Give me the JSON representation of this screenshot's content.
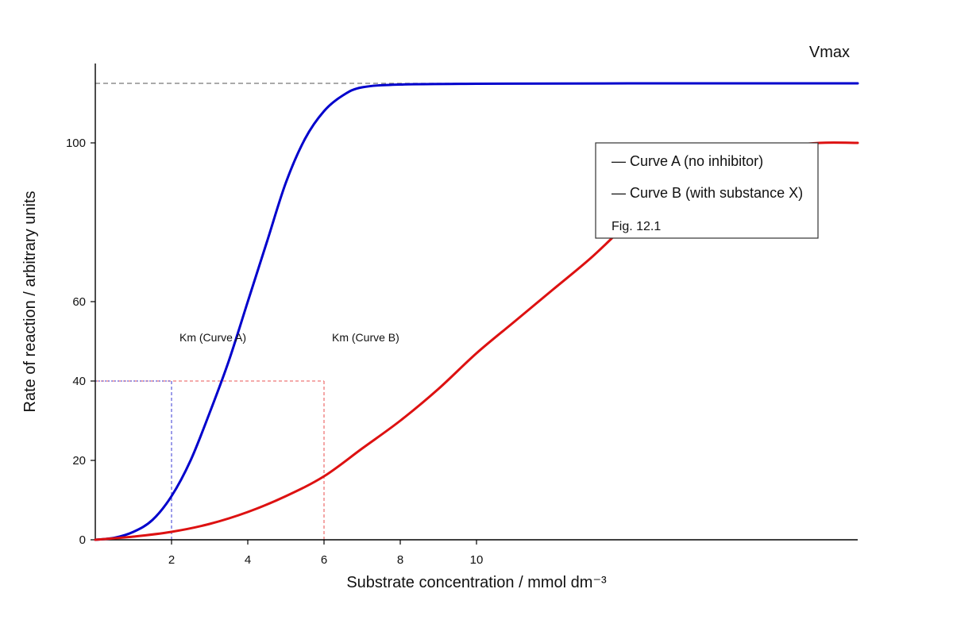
{
  "chart_data": {
    "type": "line",
    "title": "",
    "xlabel": "Substrate concentration / mmol dm⁻³",
    "ylabel": "Rate of reaction / arbitrary units",
    "xlim": [
      0,
      20
    ],
    "ylim": [
      0,
      120
    ],
    "x_ticks": [
      "2",
      "4",
      "6",
      "8",
      "10"
    ],
    "y_ticks": [
      "0",
      "20",
      "40",
      "60",
      "100"
    ],
    "grid": false,
    "legend_position": "top-right",
    "legend_note": "Fig. 12.1",
    "colors": {
      "curve_a": "#0000cc",
      "curve_b": "#dd1111",
      "vmax_line": "#777777",
      "km_a_line": "#6666dd",
      "km_b_line": "#ee7777"
    },
    "series": [
      {
        "name": "Curve A (no inhibitor)",
        "legend_label": "— Curve A (no inhibitor)",
        "color": "#0000cc",
        "points": [
          [
            0,
            0
          ],
          [
            0.5,
            0.5
          ],
          [
            1,
            2
          ],
          [
            1.5,
            5
          ],
          [
            2,
            11
          ],
          [
            2.5,
            20
          ],
          [
            3,
            32
          ],
          [
            3.5,
            45
          ],
          [
            4,
            60
          ],
          [
            4.5,
            75
          ],
          [
            5,
            90
          ],
          [
            5.5,
            101
          ],
          [
            6,
            108
          ],
          [
            6.5,
            112
          ],
          [
            7,
            114
          ],
          [
            8,
            114.7
          ],
          [
            10,
            114.9
          ],
          [
            14,
            115
          ],
          [
            20,
            115
          ]
        ]
      },
      {
        "name": "Curve B (with substance X)",
        "legend_label": "— Curve B (with substance X)",
        "color": "#dd1111",
        "points": [
          [
            0,
            0
          ],
          [
            1,
            0.8
          ],
          [
            2,
            2
          ],
          [
            3,
            4
          ],
          [
            4,
            7
          ],
          [
            5,
            11
          ],
          [
            6,
            16
          ],
          [
            7,
            23
          ],
          [
            8,
            30
          ],
          [
            9,
            38
          ],
          [
            10,
            47
          ],
          [
            11,
            55
          ],
          [
            12,
            63
          ],
          [
            13,
            71
          ],
          [
            14,
            80
          ],
          [
            15,
            88
          ],
          [
            16,
            94
          ],
          [
            17,
            97
          ],
          [
            18,
            99
          ],
          [
            19,
            100
          ],
          [
            20,
            100
          ]
        ]
      }
    ],
    "annotations": {
      "vmax_label": "Vmax",
      "vmax_value": 115,
      "km_a_label": "Km (Curve A)",
      "km_b_label": "Km (Curve B)",
      "km_a_x": 2,
      "km_b_x": 6,
      "km_rate": 40
    }
  }
}
